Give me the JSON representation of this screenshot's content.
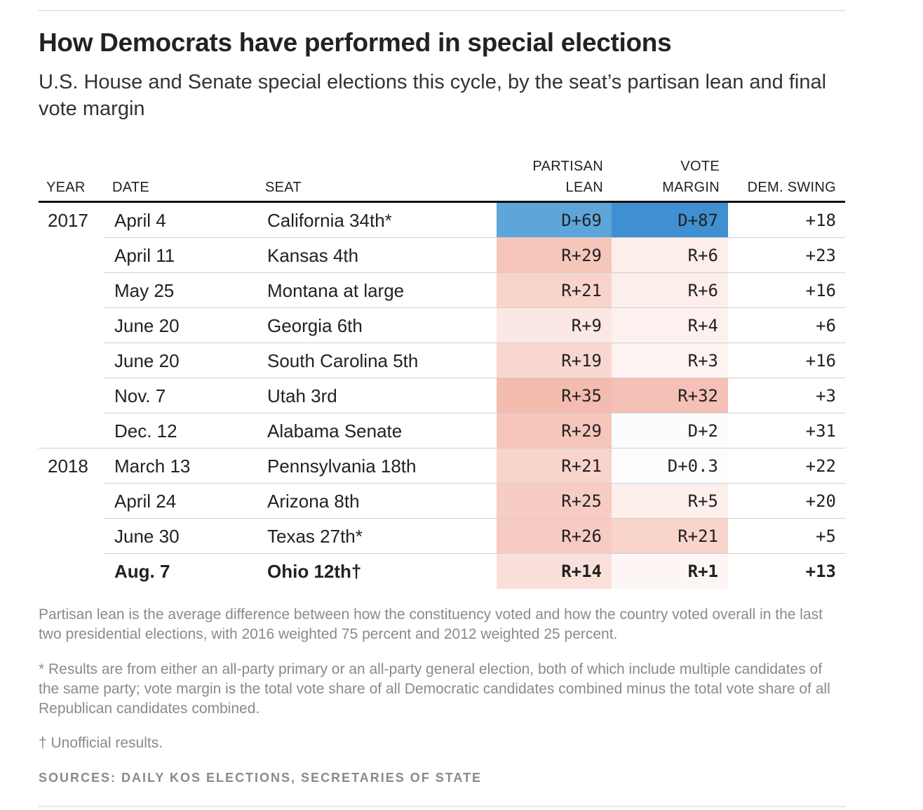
{
  "title": "How Democrats have performed in special elections",
  "subtitle": "U.S. House and Senate special elections this cycle, by the seat’s partisan lean and final vote margin",
  "headers": {
    "year": "YEAR",
    "date": "DATE",
    "seat": "SEAT",
    "lean_line1": "PARTISAN",
    "lean_line2": "LEAN",
    "margin_line1": "VOTE",
    "margin_line2": "MARGIN",
    "swing": "DEM. SWING"
  },
  "colors": {
    "dem_strong": "#3f8fd2",
    "dem_medium": "#5ea6da",
    "rep_base": "#e9745a"
  },
  "chart_data": {
    "type": "table",
    "title": "How Democrats have performed in special elections",
    "columns": [
      "YEAR",
      "DATE",
      "SEAT",
      "PARTISAN LEAN",
      "VOTE MARGIN",
      "DEM. SWING"
    ],
    "rows": [
      {
        "year": "2017",
        "date": "April 4",
        "seat": "California 34th*",
        "lean": "D+69",
        "lean_value": 69,
        "margin": "D+87",
        "margin_value": 87,
        "swing": "+18"
      },
      {
        "year": "",
        "date": "April 11",
        "seat": "Kansas 4th",
        "lean": "R+29",
        "lean_value": -29,
        "margin": "R+6",
        "margin_value": -6,
        "swing": "+23"
      },
      {
        "year": "",
        "date": "May 25",
        "seat": "Montana at large",
        "lean": "R+21",
        "lean_value": -21,
        "margin": "R+6",
        "margin_value": -6,
        "swing": "+16"
      },
      {
        "year": "",
        "date": "June 20",
        "seat": "Georgia 6th",
        "lean": "R+9",
        "lean_value": -9,
        "margin": "R+4",
        "margin_value": -4,
        "swing": "+6"
      },
      {
        "year": "",
        "date": "June 20",
        "seat": "South Carolina 5th",
        "lean": "R+19",
        "lean_value": -19,
        "margin": "R+3",
        "margin_value": -3,
        "swing": "+16"
      },
      {
        "year": "",
        "date": "Nov. 7",
        "seat": "Utah 3rd",
        "lean": "R+35",
        "lean_value": -35,
        "margin": "R+32",
        "margin_value": -32,
        "swing": "+3"
      },
      {
        "year": "",
        "date": "Dec. 12",
        "seat": "Alabama Senate",
        "lean": "R+29",
        "lean_value": -29,
        "margin": "D+2",
        "margin_value": 2,
        "swing": "+31"
      },
      {
        "year": "2018",
        "date": "March 13",
        "seat": "Pennsylvania 18th",
        "lean": "R+21",
        "lean_value": -21,
        "margin": "D+0.3",
        "margin_value": 0.3,
        "swing": "+22"
      },
      {
        "year": "",
        "date": "April 24",
        "seat": "Arizona 8th",
        "lean": "R+25",
        "lean_value": -25,
        "margin": "R+5",
        "margin_value": -5,
        "swing": "+20"
      },
      {
        "year": "",
        "date": "June 30",
        "seat": "Texas 27th*",
        "lean": "R+26",
        "lean_value": -26,
        "margin": "R+21",
        "margin_value": -21,
        "swing": "+5"
      },
      {
        "year": "",
        "date": "Aug. 7",
        "seat": "Ohio 12th†",
        "lean": "R+14",
        "lean_value": -14,
        "margin": "R+1",
        "margin_value": -1,
        "swing": "+13",
        "bold": true
      }
    ]
  },
  "notes": {
    "lean_note": "Partisan lean is the average difference between how the constituency voted and how the country voted overall in the last two presidential elections, with 2016 weighted 75 percent and 2012 weighted 25 percent.",
    "asterisk_note": "* Results are from either an all-party primary or an all-party general election, both of which include multiple candidates of the same party; vote margin is the total vote share of all Democratic candidates combined minus the total vote share of all Republican candidates combined.",
    "dagger_note": "† Unofficial results.",
    "sources": "SOURCES: DAILY KOS ELECTIONS, SECRETARIES OF STATE"
  }
}
